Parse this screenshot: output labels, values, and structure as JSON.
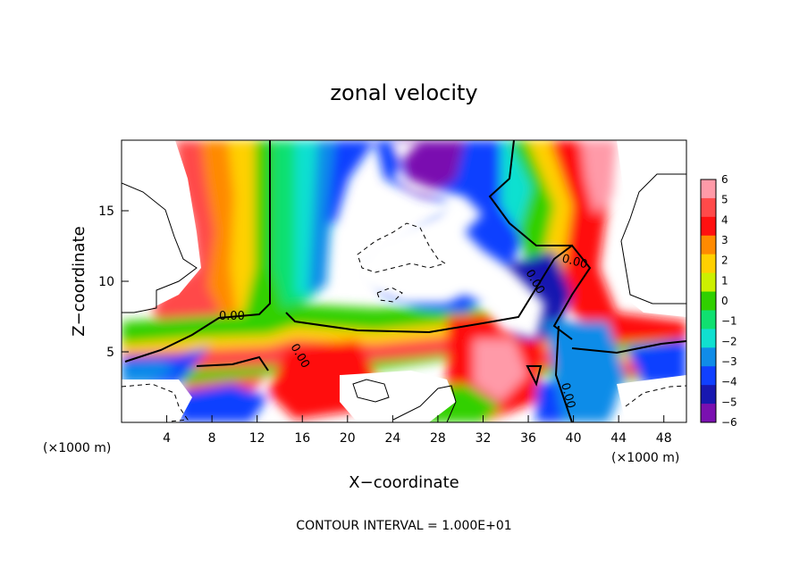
{
  "chart_data": {
    "type": "heatmap",
    "title": "zonal velocity",
    "xlabel": "X−coordinate",
    "ylabel": "Z−coordinate",
    "x_unit": "(×1000 m)",
    "x_unit_right": "(×1000 m)",
    "x_range": [
      0,
      50
    ],
    "y_range": [
      0,
      20
    ],
    "x_ticks": [
      4,
      8,
      12,
      16,
      20,
      24,
      28,
      32,
      36,
      40,
      44,
      48
    ],
    "y_ticks": [
      5,
      10,
      15
    ],
    "colorbar": {
      "ticks": [
        "6",
        "5",
        "4",
        "3",
        "2",
        "1",
        "0",
        "−1",
        "−2",
        "−3",
        "−4",
        "−5",
        "−6"
      ],
      "levels": [
        6,
        5,
        4,
        3,
        2,
        1,
        0,
        -1,
        -2,
        -3,
        -4,
        -5,
        -6
      ],
      "colors": [
        "#ff9aa8",
        "#ff4a4a",
        "#ff1010",
        "#ff8a00",
        "#ffd000",
        "#ccf000",
        "#30d000",
        "#10e070",
        "#10e0d0",
        "#108ce8",
        "#1040ff",
        "#1818b0",
        "#7a10b0"
      ]
    },
    "contour_labels": [
      "0.00",
      "0.00",
      "0.00",
      "0.00",
      "0.00"
    ],
    "contour_interval_text": "CONTOUR INTERVAL = 1.000E+01",
    "grid": false,
    "legend": "colorbar at right"
  }
}
